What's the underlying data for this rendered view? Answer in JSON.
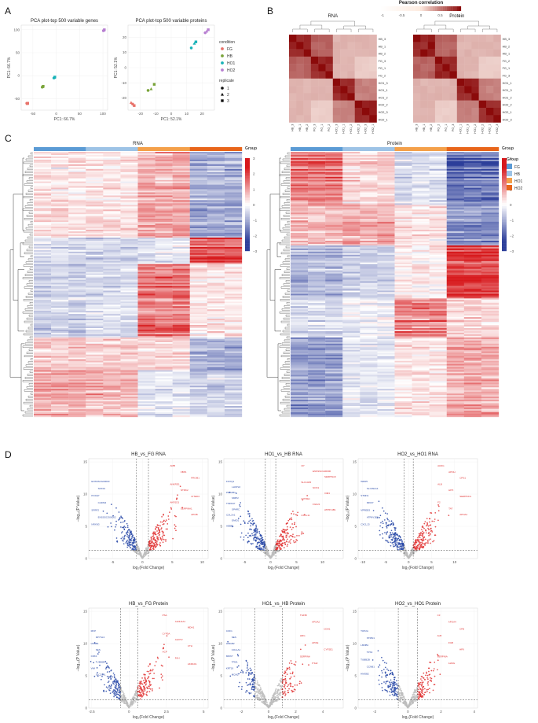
{
  "panel_labels": [
    "A",
    "B",
    "C",
    "D"
  ],
  "colors": {
    "FG": "#5b9bd5",
    "HB": "#9dc3e6",
    "HO1": "#f4a04a",
    "HO2": "#e8651a",
    "pca_FG": "#e8726a",
    "pca_HB": "#7aa43a",
    "pca_HO1": "#19b3b8",
    "pca_HO2": "#b77fd1",
    "up": "#e03030",
    "down": "#2a4aa8",
    "ns": "#bdbdbd",
    "corr_low": "#ffffff",
    "corr_high": "#8b0a0a"
  },
  "panel_a": {
    "legend_condition_title": "condition",
    "conditions": [
      "FG",
      "HB",
      "HO1",
      "HO2"
    ],
    "legend_replicate_title": "replicate",
    "replicates": [
      "1",
      "2",
      "3"
    ]
  },
  "chart_data": [
    {
      "type": "scatter",
      "title": "PCA plot-top 500 variable genes",
      "xlabel": "PC1: 66.7%",
      "ylabel": "PC1: 66.7%",
      "xlim": [
        -75,
        110
      ],
      "ylim": [
        -75,
        110
      ],
      "xticks": [
        -50,
        0,
        50,
        100
      ],
      "yticks": [
        -50,
        0,
        50,
        100
      ],
      "series": [
        {
          "name": "FG",
          "points": [
            [
              -63,
              -60
            ],
            [
              -62,
              -61
            ],
            [
              -61,
              -60
            ]
          ]
        },
        {
          "name": "HB",
          "points": [
            [
              -30,
              -25
            ],
            [
              -29,
              -24
            ],
            [
              -28,
              -23
            ]
          ]
        },
        {
          "name": "HO1",
          "points": [
            [
              -5,
              -5
            ],
            [
              -4,
              -4
            ],
            [
              -3,
              -3
            ]
          ]
        },
        {
          "name": "HO2",
          "points": [
            [
              101,
              98
            ],
            [
              102,
              99
            ],
            [
              103,
              100
            ]
          ]
        }
      ]
    },
    {
      "type": "scatter",
      "title": "PCA plot-top 500 variable proteins",
      "xlabel": "PC1: 52.1%",
      "ylabel": "PC1: 52.1%",
      "xlim": [
        -28,
        28
      ],
      "ylim": [
        -28,
        28
      ],
      "xticks": [
        -20,
        -10,
        0,
        10,
        20
      ],
      "yticks": [
        -20,
        -10,
        0,
        10,
        20
      ],
      "series": [
        {
          "name": "FG",
          "points": [
            [
              -25,
              -24
            ],
            [
              -26,
              -23
            ],
            [
              -24,
              -25
            ]
          ]
        },
        {
          "name": "HB",
          "points": [
            [
              -15,
              -15
            ],
            [
              -13,
              -14
            ],
            [
              -11,
              -11
            ]
          ]
        },
        {
          "name": "HO1",
          "points": [
            [
              13,
              13
            ],
            [
              15,
              16
            ],
            [
              16,
              17
            ]
          ]
        },
        {
          "name": "HO2",
          "points": [
            [
              22,
              23
            ],
            [
              23,
              24
            ],
            [
              24,
              25
            ]
          ]
        }
      ]
    },
    {
      "type": "heatmap",
      "title": "RNA",
      "row_labels": [
        "HB_3",
        "HB_1",
        "HB_2",
        "FG_3",
        "FG_1",
        "FG_2",
        "HO1_3",
        "HO1_1",
        "HO1_2",
        "HO2_2",
        "HO2_3",
        "HO2_1"
      ],
      "col_labels": [
        "HB_3",
        "HB_1",
        "HB_2",
        "FG_3",
        "FG_1",
        "FG_2",
        "HO1_3",
        "HO1_1",
        "HO1_2",
        "HO2_2",
        "HO2_3",
        "HO2_1"
      ],
      "colorbar_title": "Pearson correlation",
      "colorbar_ticks": [
        "-1",
        "-0.5",
        "0",
        "0.5",
        "1"
      ],
      "groups_within": 0.9,
      "groups_near": 0.7,
      "groups_far": 0.35
    },
    {
      "type": "heatmap",
      "title": "Protein",
      "row_labels": [
        "HB_3",
        "HB_2",
        "HB_1",
        "FG_2",
        "FG_1",
        "FG_3",
        "HO1_1",
        "HO1_3",
        "HO1_2",
        "HO2_2",
        "HO2_1",
        "HO2_3"
      ],
      "col_labels": [
        "HB_3",
        "HB_1",
        "HB_2",
        "FG_2",
        "FG_1",
        "FG_3",
        "HO1_1",
        "HO1_3",
        "HO1_2",
        "HO2_2",
        "HO2_1",
        "HO2_3"
      ]
    },
    {
      "type": "heatmap",
      "title": "RNA",
      "legend_title": "Group",
      "groups": [
        "FG",
        "HB",
        "HO1",
        "HO2"
      ],
      "scale_ticks": [
        "3",
        "2",
        "1",
        "0",
        "−1",
        "−2",
        "−3"
      ]
    },
    {
      "type": "heatmap",
      "title": "Protein",
      "legend_title": "Group",
      "groups": [
        "FG",
        "HB",
        "HO1",
        "HO2"
      ],
      "scale_ticks": [
        "3",
        "2",
        "1",
        "0",
        "−1",
        "−2",
        "−3"
      ]
    },
    {
      "type": "scatter",
      "subtype": "volcano",
      "xlabel": "log₂(Fold Change)",
      "ylabel": "−log₁₀(P Value)",
      "panels": [
        {
          "title": "HB_vs_FG RNA",
          "xlim": [
            -9,
            11
          ],
          "xticks": [
            -5,
            0,
            5,
            10
          ],
          "ylim": [
            0,
            15.5
          ],
          "yticks": [
            0,
            5,
            10,
            15
          ],
          "thr": 1,
          "up_genes": [
            "AMB",
            "FBP1",
            "PROM1",
            "ANKRD1",
            "NTRK2",
            "CITED4",
            "AKR1D1",
            "SERPINA1",
            "APOB"
          ],
          "down_genes": [
            "ENSSSCG00000",
            "SNX31",
            "PCDH7",
            "CADM4",
            "SFRP2",
            "ENSSSCG00002",
            "NRXN3"
          ]
        },
        {
          "title": "HO1_vs_HB RNA",
          "xlim": [
            -9,
            14
          ],
          "xticks": [
            -5,
            0,
            5,
            10
          ],
          "ylim": [
            0,
            15.5
          ],
          "yticks": [
            0,
            5,
            10,
            15
          ],
          "thr": 1,
          "up_genes": [
            "CP",
            "ENSSSCG00000",
            "SERPINA3",
            "SLC13A5",
            "NOX1",
            "VIM3",
            "CYP2E1",
            "FGF21",
            "ATP6V1B1",
            "CXCL11"
          ],
          "down_genes": [
            "FOXQ1",
            "LHFPL6",
            "PRKAB1",
            "MMP2",
            "TSPAN7",
            "SPARC",
            "COL1A1",
            "EMID1",
            "AEBP1"
          ]
        },
        {
          "title": "HO2_vs_HO1 RNA",
          "xlim": [
            -11,
            15
          ],
          "xticks": [
            -10,
            -5,
            0,
            5,
            10
          ],
          "ylim": [
            0,
            15.5
          ],
          "yticks": [
            0,
            5,
            10,
            15
          ],
          "thr": 1,
          "up_genes": [
            "AHSG",
            "APOH",
            "CPS1",
            "ALB",
            "HPX",
            "SERPINC1",
            "F2",
            "TAT",
            "APOA1"
          ],
          "down_genes": [
            "WDR5",
            "SLC39A14",
            "STMN1",
            "MKI67",
            "VPREB3",
            "ATP6V1E2",
            "CXCL13"
          ]
        },
        {
          "title": "HB_vs_FG Protein",
          "xlim": [
            -2.7,
            5.3
          ],
          "xticks": [
            -2.5,
            0,
            2.5,
            5
          ],
          "ylim": [
            0,
            15.5
          ],
          "yticks": [
            0,
            5,
            10,
            15
          ],
          "thr": 0.58,
          "up_genes": [
            "PSA",
            "ALDH1A1",
            "MDH1",
            "CYP3A",
            "AGXT2",
            "CTH",
            "ACP",
            "FAH",
            "AKR1D1"
          ],
          "down_genes": [
            "MVP",
            "DPYSL3",
            "LMNB1",
            "NES",
            "CDK1",
            "TUBB2B",
            "VIM",
            "SLC29A1"
          ]
        },
        {
          "title": "HO1_vs_HB Protein",
          "xlim": [
            -3.3,
            5.5
          ],
          "xticks": [
            -2,
            0,
            2,
            4
          ],
          "ylim": [
            0,
            15.5
          ],
          "yticks": [
            0,
            5,
            10,
            15
          ],
          "thr": 1,
          "up_genes": [
            "TGFBI",
            "APOA2",
            "CDH1",
            "HRG",
            "APOE",
            "CYP2E1",
            "SERPINA",
            "ITIH2"
          ],
          "down_genes": [
            "COF1",
            "NES",
            "HMGB2",
            "COL1A1",
            "MKI67",
            "TPM1",
            "KRT19",
            "MCM2"
          ]
        },
        {
          "title": "HO2_vs_HO1 Protein",
          "xlim": [
            -3,
            4.2
          ],
          "xticks": [
            -2,
            0,
            2,
            4
          ],
          "ylim": [
            0,
            15.5
          ],
          "yticks": [
            0,
            5,
            10,
            15
          ],
          "thr": 0.58,
          "up_genes": [
            "C3",
            "APOA4",
            "CFB",
            "ALB",
            "FGB",
            "HPX",
            "SERPINA",
            "AHSG"
          ],
          "down_genes": [
            "TOP2A",
            "STMN1",
            "LMNB1",
            "TPX2",
            "TUBB2B",
            "CCNB1",
            "HMGB2"
          ]
        }
      ]
    }
  ]
}
